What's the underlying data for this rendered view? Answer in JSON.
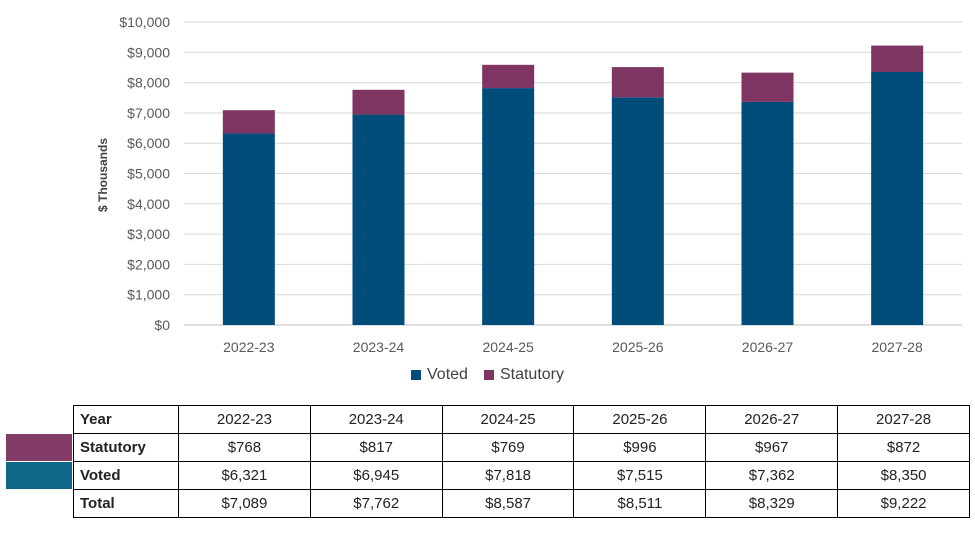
{
  "colors": {
    "voted": "#004D7A",
    "statutory": "#7E3562",
    "voted_table": "#0E6787",
    "statutory_table": "#833B68"
  },
  "chart_data": {
    "type": "bar",
    "stacked": true,
    "title": "",
    "xlabel": "",
    "ylabel": "$ Thousands",
    "ylim": [
      0,
      10000
    ],
    "yticks": [
      0,
      1000,
      2000,
      3000,
      4000,
      5000,
      6000,
      7000,
      8000,
      9000,
      10000
    ],
    "ytick_labels": [
      "$0",
      "$1,000",
      "$2,000",
      "$3,000",
      "$4,000",
      "$5,000",
      "$6,000",
      "$7,000",
      "$8,000",
      "$9,000",
      "$10,000"
    ],
    "grid": true,
    "legend_position": "bottom",
    "categories": [
      "2022-23",
      "2023-24",
      "2024-25",
      "2025-26",
      "2026-27",
      "2027-28"
    ],
    "series": [
      {
        "name": "Voted",
        "values": [
          6321,
          6945,
          7818,
          7515,
          7362,
          8350
        ]
      },
      {
        "name": "Statutory",
        "values": [
          768,
          817,
          769,
          996,
          967,
          872
        ]
      }
    ]
  },
  "legend": {
    "voted_label": "Voted",
    "statutory_label": "Statutory"
  },
  "table": {
    "header_label": "Year",
    "years": [
      "2022-23",
      "2023-24",
      "2024-25",
      "2025-26",
      "2026-27",
      "2027-28"
    ],
    "rows": [
      {
        "label": "Statutory",
        "cells": [
          "$768",
          "$817",
          "$769",
          "$996",
          "$967",
          "$872"
        ]
      },
      {
        "label": "Voted",
        "cells": [
          "$6,321",
          "$6,945",
          "$7,818",
          "$7,515",
          "$7,362",
          "$8,350"
        ]
      },
      {
        "label": "Total",
        "cells": [
          "$7,089",
          "$7,762",
          "$8,587",
          "$8,511",
          "$8,329",
          "$9,222"
        ]
      }
    ]
  }
}
